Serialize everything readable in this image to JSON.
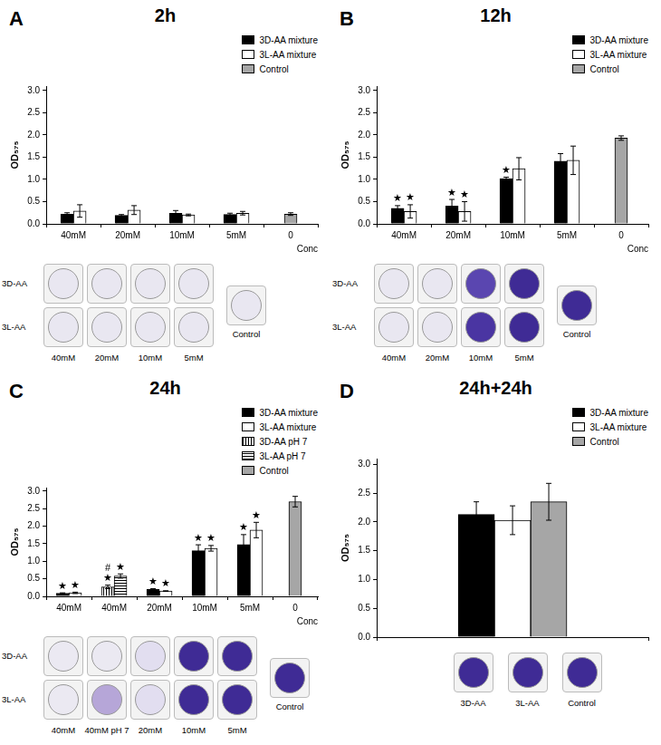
{
  "chart_data": [
    {
      "panel": "A",
      "type": "bar",
      "title": "2h",
      "y_label": "OD₅₇₅",
      "x_label": "Conc",
      "categories": [
        "40mM",
        "20mM",
        "10mM",
        "5mM",
        "0"
      ],
      "ylim": [
        0,
        3.1
      ],
      "yticks": [
        {
          "value": 0,
          "label": "0.0"
        },
        0.5,
        {
          "value": 1,
          "label": "1.0"
        },
        1.5,
        {
          "value": 2,
          "label": "2.0"
        },
        2.5,
        {
          "value": 3,
          "label": "3.0"
        }
      ],
      "grid": false,
      "legend": "upper right",
      "series": [
        {
          "name": "3D-AA mixture",
          "color": "#000000",
          "values": [
            0.22,
            0.19,
            0.24,
            0.21,
            null
          ],
          "errors": [
            0.03,
            0.02,
            0.06,
            0.03,
            null
          ]
        },
        {
          "name": "3L-AA mixture",
          "color": "#ffffff",
          "values": [
            0.29,
            0.31,
            0.2,
            0.24,
            null
          ],
          "errors": [
            0.14,
            0.1,
            0.02,
            0.04,
            null
          ]
        },
        {
          "name": "Control",
          "color": "#a6a6a6",
          "values": [
            null,
            null,
            null,
            null,
            0.22
          ],
          "errors": [
            null,
            null,
            null,
            null,
            0.03
          ]
        }
      ],
      "wells": {
        "rows": [
          "3D-AA",
          "3L-AA"
        ],
        "columns": [
          "40mM",
          "20mM",
          "10mM",
          "5mM"
        ],
        "colors": [
          [
            "#e9e7f1",
            "#e9e7f1",
            "#e9e7f1",
            "#e9e7f1"
          ],
          [
            "#e9e7f1",
            "#e9e7f1",
            "#e9e7f1",
            "#e9e7f1"
          ]
        ],
        "control": {
          "label": "Control",
          "color": "#e9e7f1"
        }
      }
    },
    {
      "panel": "B",
      "type": "bar",
      "title": "12h",
      "y_label": "OD₅₇₅",
      "x_label": "Conc",
      "categories": [
        "40mM",
        "20mM",
        "10mM",
        "5mM",
        "0"
      ],
      "ylim": [
        0,
        3.1
      ],
      "yticks": [
        {
          "value": 0,
          "label": "0.0"
        },
        0.5,
        {
          "value": 1,
          "label": "1.0"
        },
        1.5,
        {
          "value": 2,
          "label": "2.0"
        },
        2.5,
        {
          "value": 3,
          "label": "3.0"
        }
      ],
      "grid": false,
      "legend": "upper right",
      "series": [
        {
          "name": "3D-AA mixture",
          "color": "#000000",
          "values": [
            0.35,
            0.4,
            1.02,
            1.41,
            null
          ],
          "errors": [
            0.06,
            0.15,
            0.03,
            0.17,
            null
          ],
          "annotations": [
            [
              "★"
            ],
            [
              "★"
            ],
            [
              "★"
            ],
            null,
            null
          ]
        },
        {
          "name": "3L-AA mixture",
          "color": "#ffffff",
          "values": [
            0.28,
            0.28,
            1.24,
            1.43,
            null
          ],
          "errors": [
            0.15,
            0.22,
            0.25,
            0.32,
            null
          ],
          "annotations": [
            [
              "★"
            ],
            [
              "★"
            ],
            null,
            null,
            null
          ]
        },
        {
          "name": "Control",
          "color": "#a6a6a6",
          "values": [
            null,
            null,
            null,
            null,
            1.93
          ],
          "errors": [
            null,
            null,
            null,
            null,
            0.05
          ]
        }
      ],
      "wells": {
        "rows": [
          "3D-AA",
          "3L-AA"
        ],
        "columns": [
          "40mM",
          "20mM",
          "10mM",
          "5mM"
        ],
        "colors": [
          [
            "#e9e7f1",
            "#e9e7f1",
            "#5a46b0",
            "#3f2b95"
          ],
          [
            "#e9e7f1",
            "#e9e7f1",
            "#4a35a2",
            "#3f2b95"
          ]
        ],
        "control": {
          "label": "Control",
          "color": "#3f2b95"
        }
      }
    },
    {
      "panel": "C",
      "type": "bar",
      "title": "24h",
      "y_label": "OD₅₇₅",
      "x_label": "Conc",
      "categories": [
        "40mM",
        "40mM",
        "20mM",
        "10mM",
        "5mM",
        "0"
      ],
      "ylim": [
        0,
        3.1
      ],
      "yticks": [
        {
          "value": 0,
          "label": "0.0"
        },
        0.5,
        {
          "value": 1,
          "label": "1.0"
        },
        1.5,
        {
          "value": 2,
          "label": "2.0"
        },
        2.5,
        {
          "value": 3,
          "label": "3.0"
        }
      ],
      "grid": false,
      "legend": "upper right",
      "series": [
        {
          "name": "3D-AA mixture",
          "color": "#000000",
          "values": [
            0.09,
            null,
            0.2,
            1.3,
            1.48,
            null
          ],
          "errors": [
            0.01,
            null,
            0.02,
            0.17,
            0.28,
            null
          ],
          "annotations": [
            [
              "★"
            ],
            null,
            [
              "★"
            ],
            [
              "★"
            ],
            [
              "★"
            ],
            null
          ]
        },
        {
          "name": "3L-AA mixture",
          "color": "#ffffff",
          "values": [
            0.1,
            null,
            0.15,
            1.37,
            1.89,
            null
          ],
          "errors": [
            0.02,
            null,
            0.01,
            0.08,
            0.22,
            null
          ],
          "annotations": [
            [
              "★"
            ],
            null,
            [
              "★"
            ],
            [
              "★"
            ],
            [
              "★"
            ],
            null
          ]
        },
        {
          "name": "3D-AA pH 7",
          "color": "#ffffff",
          "line_style": "vertical",
          "values": [
            null,
            0.27,
            null,
            null,
            null,
            null
          ],
          "errors": [
            null,
            0.05,
            null,
            null,
            null,
            null
          ],
          "annotations": [
            null,
            [
              "#",
              "★"
            ],
            null,
            null,
            null,
            null
          ]
        },
        {
          "name": "3L-AA pH 7",
          "color": "#ffffff",
          "line_style": "horizontal",
          "values": [
            null,
            0.58,
            null,
            null,
            null,
            null
          ],
          "errors": [
            null,
            0.06,
            null,
            null,
            null,
            null
          ],
          "annotations": [
            null,
            [
              "★"
            ],
            null,
            null,
            null,
            null
          ]
        },
        {
          "name": "Control",
          "color": "#a6a6a6",
          "values": [
            null,
            null,
            null,
            null,
            null,
            2.7
          ],
          "errors": [
            null,
            null,
            null,
            null,
            null,
            0.15
          ]
        }
      ],
      "wells": {
        "rows": [
          "3D-AA",
          "3L-AA"
        ],
        "columns": [
          "40mM",
          "40mM pH 7",
          "20mM",
          "10mM",
          "5mM"
        ],
        "colors": [
          [
            "#ebe9f2",
            "#ebe9f2",
            "#e2def0",
            "#3f2b95",
            "#3f2b95"
          ],
          [
            "#ebe9f2",
            "#b6a6d8",
            "#e2def0",
            "#3f2b95",
            "#3f2b95"
          ]
        ],
        "control": {
          "label": "Control",
          "color": "#3f2b95"
        }
      }
    },
    {
      "panel": "D",
      "type": "bar",
      "title": "24h+24h",
      "y_label": "OD₅₇₅",
      "categories": [
        null
      ],
      "ylim": [
        0,
        3.1
      ],
      "yticks": [
        {
          "value": 0,
          "label": "0.0"
        },
        0.5,
        {
          "value": 1,
          "label": "1.0"
        },
        1.5,
        {
          "value": 2,
          "label": "2.0"
        },
        2.5,
        {
          "value": 3,
          "label": "3.0"
        }
      ],
      "grid": false,
      "legend": "upper right",
      "tick_labels": "y",
      "series": [
        {
          "name": "3D-AA mixture",
          "color": "#000000",
          "values": [
            2.13
          ],
          "errors": [
            0.22
          ]
        },
        {
          "name": "3L-AA mixture",
          "color": "#ffffff",
          "values": [
            2.03
          ],
          "errors": [
            0.25
          ]
        },
        {
          "name": "Control",
          "color": "#a6a6a6",
          "values": [
            2.35
          ],
          "errors": [
            0.32
          ]
        }
      ],
      "wells": {
        "columns": [
          "3D-AA",
          "3L-AA",
          "Control"
        ],
        "colors": [
          [
            "#3f2b95",
            "#3f2b95",
            "#3f2b95"
          ]
        ]
      }
    }
  ]
}
